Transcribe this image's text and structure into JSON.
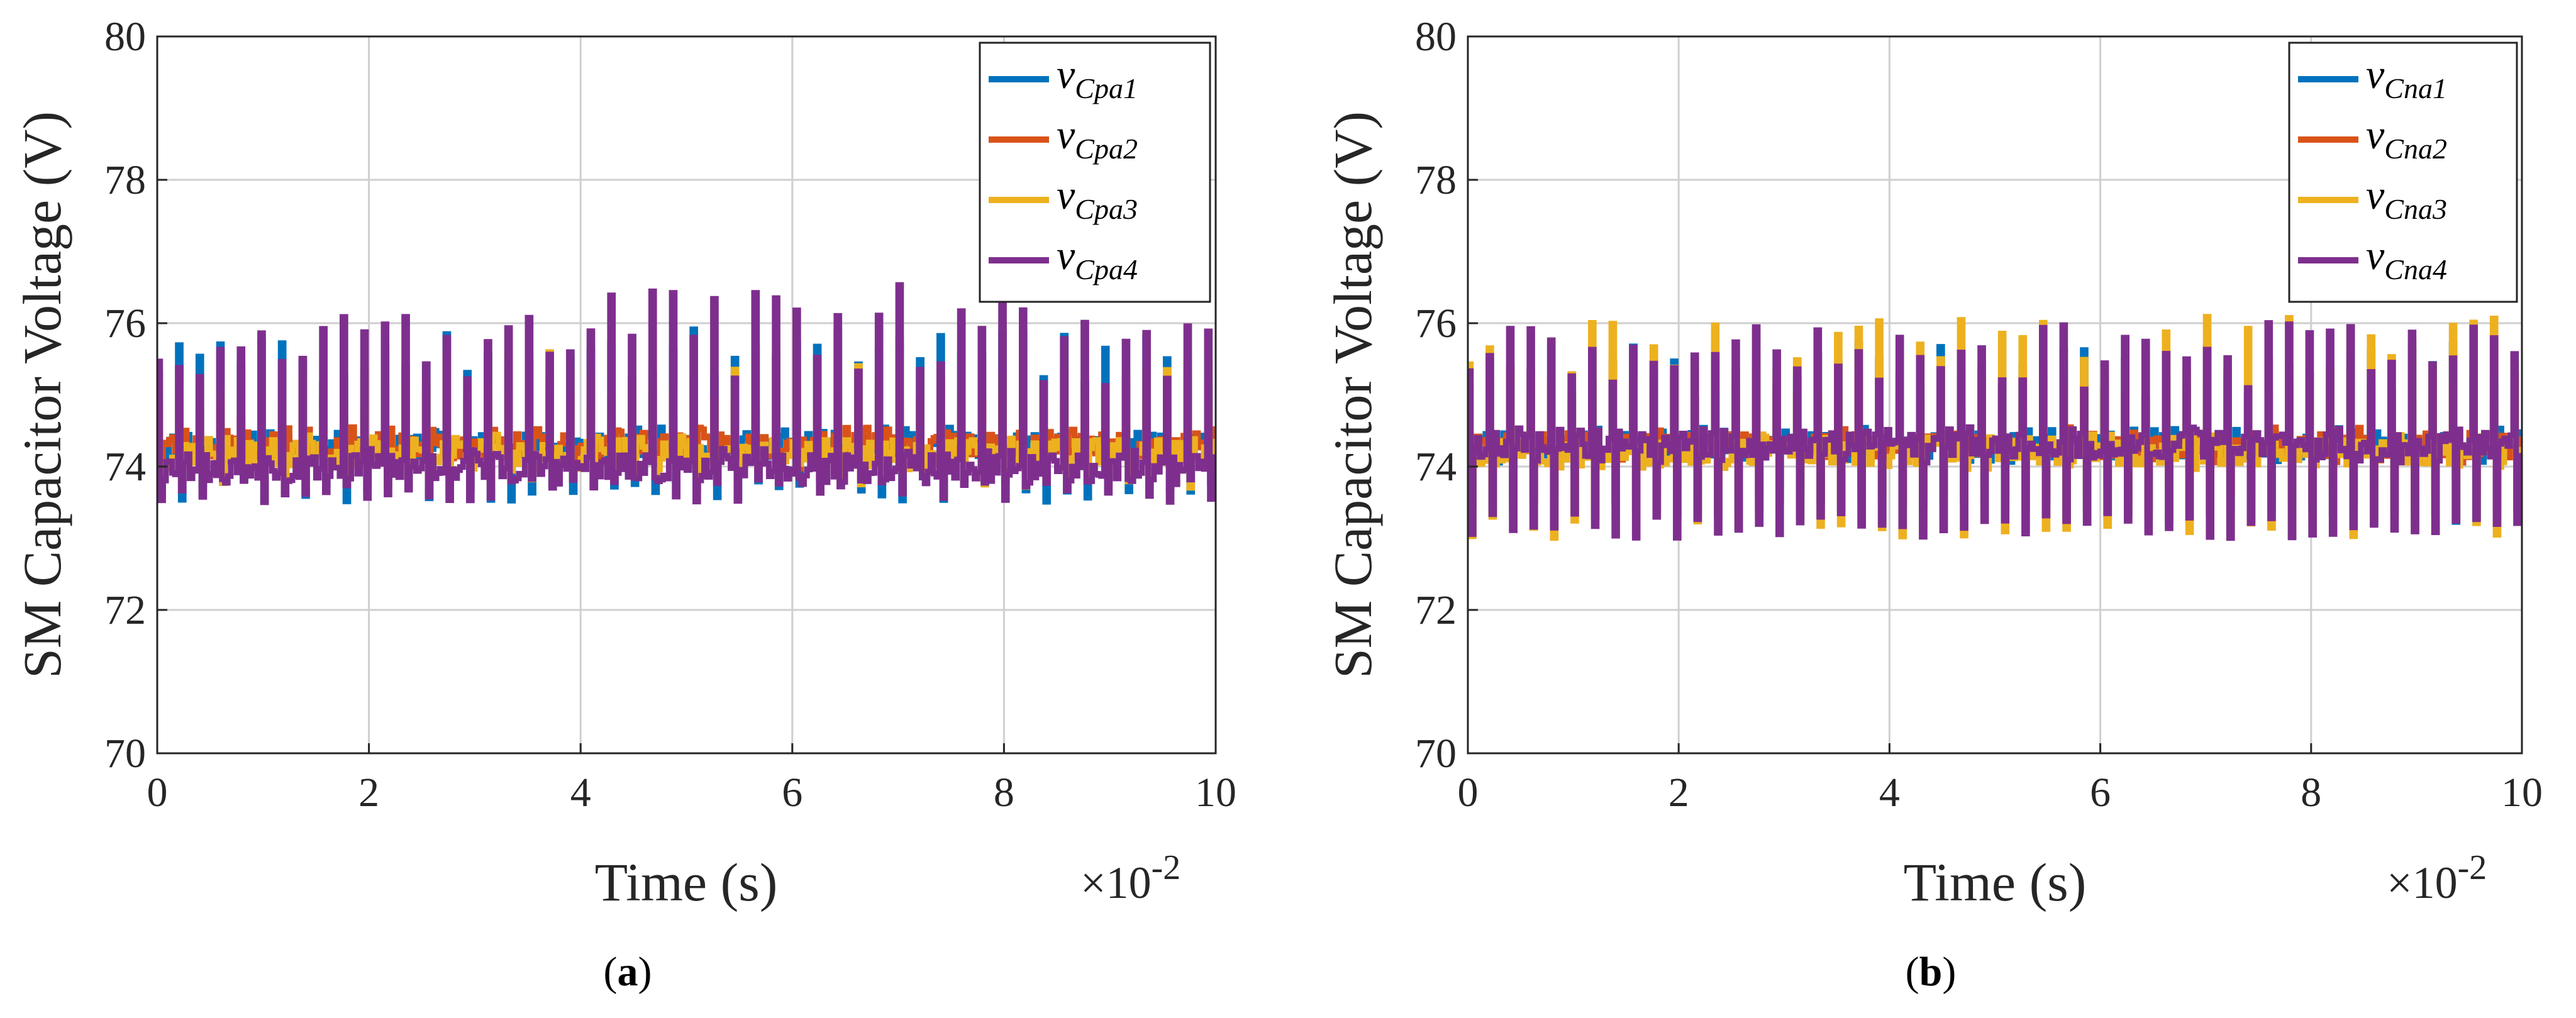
{
  "colors": {
    "series1": "#0072BD",
    "series2": "#D95319",
    "series3": "#EDB120",
    "series4": "#7E2F8E",
    "axis": "#262626",
    "grid": "#cfcfcf"
  },
  "chart_data": [
    {
      "type": "line",
      "panel": "a",
      "caption": "a",
      "xlabel": "Time (s)",
      "ylabel": "SM Capacitor Voltage (V)",
      "x_multiplier_label": "×10",
      "x_multiplier_exp": "-2",
      "xlim": [
        0,
        10
      ],
      "ylim": [
        70,
        80
      ],
      "xticks": [
        0,
        2,
        4,
        6,
        8,
        10
      ],
      "yticks": [
        70,
        72,
        74,
        76,
        78,
        80
      ],
      "grid": true,
      "legend_position": "top-right",
      "series": [
        {
          "name": "vCpa1",
          "var": "v",
          "sub": "Cpa1",
          "color": "#0072BD",
          "baseline": 74.3,
          "mean_peak": 75.4,
          "spread": 0.5,
          "low": 73.5,
          "seed": 11
        },
        {
          "name": "vCpa2",
          "var": "v",
          "sub": "Cpa2",
          "color": "#D95319",
          "baseline": 74.3,
          "mean_peak": 74.8,
          "spread": 0.3,
          "low": 73.9,
          "seed": 23
        },
        {
          "name": "vCpa3",
          "var": "v",
          "sub": "Cpa3",
          "color": "#EDB120",
          "baseline": 74.2,
          "mean_peak": 75.0,
          "spread": 0.6,
          "low": 73.7,
          "seed": 37
        },
        {
          "name": "vCpa4",
          "var": "v",
          "sub": "Cpa4",
          "color": "#7E2F8E",
          "baseline": 74.0,
          "mean_peak": 75.6,
          "spread": 0.9,
          "low": 73.5,
          "seed": 53
        }
      ]
    },
    {
      "type": "line",
      "panel": "b",
      "caption": "b",
      "xlabel": "Time (s)",
      "ylabel": "SM Capacitor Voltage (V)",
      "x_multiplier_label": "×10",
      "x_multiplier_exp": "-2",
      "xlim": [
        0,
        10
      ],
      "ylim": [
        70,
        80
      ],
      "xticks": [
        0,
        2,
        4,
        6,
        8,
        10
      ],
      "yticks": [
        70,
        72,
        74,
        76,
        78,
        80
      ],
      "grid": true,
      "legend_position": "top-right",
      "series": [
        {
          "name": "vCna1",
          "var": "v",
          "sub": "Cna1",
          "color": "#0072BD",
          "baseline": 74.3,
          "mean_peak": 75.2,
          "spread": 0.5,
          "low": 73.2,
          "seed": 71
        },
        {
          "name": "vCna2",
          "var": "v",
          "sub": "Cna2",
          "color": "#D95319",
          "baseline": 74.3,
          "mean_peak": 75.0,
          "spread": 0.4,
          "low": 73.5,
          "seed": 83
        },
        {
          "name": "vCna3",
          "var": "v",
          "sub": "Cna3",
          "color": "#EDB120",
          "baseline": 74.2,
          "mean_peak": 75.5,
          "spread": 0.6,
          "low": 73.0,
          "seed": 97
        },
        {
          "name": "vCna4",
          "var": "v",
          "sub": "Cna4",
          "color": "#7E2F8E",
          "baseline": 74.3,
          "mean_peak": 75.4,
          "spread": 0.6,
          "low": 73.0,
          "seed": 109
        }
      ]
    }
  ]
}
